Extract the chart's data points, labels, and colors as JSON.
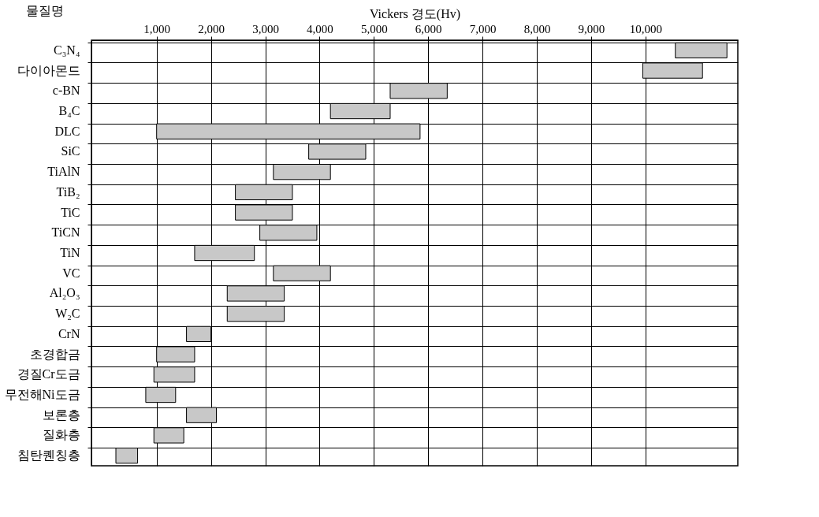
{
  "chart_data": {
    "type": "bar",
    "orientation": "horizontal",
    "xlabel": "Vickers 경도(Hv)",
    "ylabel": "물질명",
    "categories": [
      "C₃N₄",
      "다이아몬드",
      "c-BN",
      "B₄C",
      "DLC",
      "SiC",
      "TiAlN",
      "TiB₂",
      "TiC",
      "TiCN",
      "TiN",
      "VC",
      "Al₂O₃",
      "W₂C",
      "CrN",
      "초경합금",
      "경질Cr도금",
      "무전해Ni도금",
      "보론층",
      "질화층",
      "침탄퀜칭층"
    ],
    "base": [
      10550,
      9950,
      5300,
      4200,
      1000,
      3800,
      3150,
      2450,
      2450,
      2900,
      1700,
      3150,
      2300,
      2300,
      1550,
      1000,
      950,
      800,
      1550,
      950,
      250
    ],
    "values": [
      950,
      1100,
      1050,
      1100,
      4850,
      1050,
      1050,
      1050,
      1050,
      1050,
      1100,
      1050,
      1050,
      1050,
      450,
      700,
      750,
      550,
      550,
      550,
      400
    ],
    "color": "#c8c8c8",
    "xlim": [
      -200,
      11700
    ],
    "xticks": [
      {
        "value": 1000,
        "label": "1,000"
      },
      {
        "value": 2000,
        "label": "2,000"
      },
      {
        "value": 3000,
        "label": "3,000"
      },
      {
        "value": 4000,
        "label": "4,000"
      },
      {
        "value": 5000,
        "label": "5,000"
      },
      {
        "value": 6000,
        "label": "6,000"
      },
      {
        "value": 7000,
        "label": "7,000"
      },
      {
        "value": 8000,
        "label": "8,000"
      },
      {
        "value": 9000,
        "label": "9,000"
      },
      {
        "value": 10000,
        "label": "10,000"
      }
    ],
    "grid": true
  }
}
